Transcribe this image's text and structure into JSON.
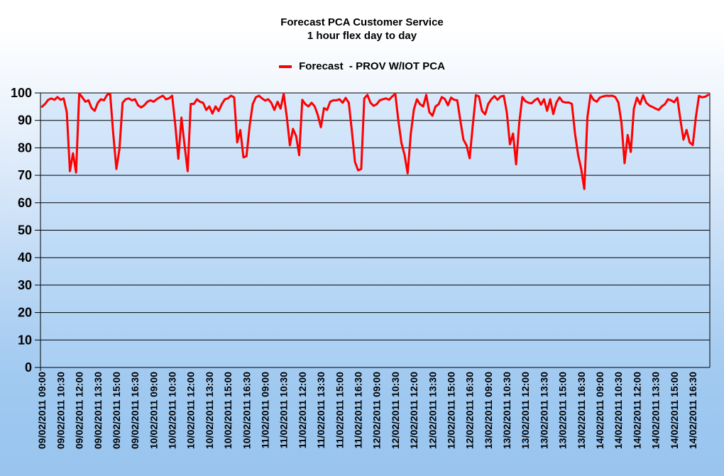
{
  "chart": {
    "title": "Forecast PCA Customer Service",
    "subtitle": "1 hour flex day to day",
    "legend_label": "Forecast  - PROV W/IOT PCA",
    "series_color": "#ff0000"
  },
  "colors": {
    "line": "#ff0000",
    "grid": "#000000",
    "text": "#000000",
    "page_top": "#ffffff",
    "page_bottom": "#99c4ee",
    "plot_top": "#d9e9fb",
    "plot_bottom": "#a9cff3"
  },
  "chart_data": {
    "type": "line",
    "title": "Forecast PCA Customer Service",
    "subtitle": "1 hour flex day to day",
    "legend": [
      {
        "label": "Forecast  - PROV W/IOT PCA",
        "color": "#ff0000"
      }
    ],
    "legend_position": "top-center",
    "grid": "horizontal-only",
    "ylim": [
      0,
      100
    ],
    "yticks": [
      0,
      10,
      20,
      30,
      40,
      50,
      60,
      70,
      80,
      90,
      100
    ],
    "points_per_tick": 6,
    "sample_interval_minutes": 15,
    "x_label_rotation": -90,
    "x_tick_labels": [
      "09/02/2011 09:00",
      "09/02/2011 10:30",
      "09/02/2011 12:00",
      "09/02/2011 13:30",
      "09/02/2011 15:00",
      "09/02/2011 16:30",
      "10/02/2011 09:00",
      "10/02/2011 10:30",
      "10/02/2011 12:00",
      "10/02/2011 13:30",
      "10/02/2011 15:00",
      "10/02/2011 16:30",
      "11/02/2011 09:00",
      "11/02/2011 10:30",
      "11/02/2011 12:00",
      "11/02/2011 13:30",
      "11/02/2011 15:00",
      "11/02/2011 16:30",
      "12/02/2011 09:00",
      "12/02/2011 10:30",
      "12/02/2011 12:00",
      "12/02/2011 13:30",
      "12/02/2011 15:00",
      "12/02/2011 16:30",
      "13/02/2011 09:00",
      "13/02/2011 10:30",
      "13/02/2011 12:00",
      "13/02/2011 13:30",
      "13/02/2011 15:00",
      "13/02/2011 16:30",
      "14/02/2011 09:00",
      "14/02/2011 10:30",
      "14/02/2011 12:00",
      "14/02/2011 13:30",
      "14/02/2011 15:00",
      "14/02/2011 16:30"
    ],
    "series": [
      {
        "name": "Forecast - PROV W/IOT PCA",
        "color": "#ff0000",
        "values": [
          95,
          96,
          97.5,
          98,
          97.5,
          98.5,
          97.5,
          98,
          93,
          71.5,
          78,
          71,
          99.8,
          98.4,
          96.8,
          97.3,
          94.5,
          93.5,
          96.4,
          97.7,
          97.3,
          99.3,
          99.7,
          85,
          72.3,
          79.6,
          96.4,
          97.7,
          98,
          97.3,
          97.7,
          95.5,
          94.7,
          95.5,
          96.8,
          97.3,
          96.8,
          97.7,
          98.4,
          99,
          97.7,
          98,
          99,
          88.5,
          76,
          91,
          81,
          71.5,
          96,
          96,
          97.7,
          96.8,
          96.4,
          93.8,
          95.1,
          92.5,
          95.1,
          93.4,
          95.9,
          97.7,
          98,
          99,
          98.4,
          82,
          86.5,
          76.5,
          77,
          88,
          96,
          98.4,
          99,
          98,
          97.2,
          97.7,
          96.4,
          93.8,
          96.8,
          94.3,
          99.7,
          91.2,
          80.9,
          86.9,
          84.3,
          77.3,
          97.5,
          95.9,
          95.1,
          96.4,
          95.1,
          92,
          87.5,
          94.5,
          93.8,
          96.8,
          97.3,
          97.3,
          97.7,
          96.4,
          98.2,
          96.4,
          86,
          74.9,
          71.8,
          72.3,
          98,
          99.3,
          96.4,
          95.3,
          95.9,
          97.3,
          97.7,
          98,
          97.5,
          98.7,
          99.7,
          90,
          81.7,
          77.4,
          70.7,
          85,
          94,
          97.7,
          95.9,
          95.1,
          99.3,
          93,
          91.7,
          95.1,
          95.9,
          98.5,
          97.8,
          95.5,
          98.3,
          97.5,
          97.3,
          89.9,
          83,
          80.9,
          76.2,
          88,
          99.2,
          98.7,
          93.5,
          92.2,
          96,
          97.7,
          98.8,
          97.5,
          98.7,
          99,
          93,
          81.3,
          85.2,
          74,
          89,
          98.5,
          97,
          96.4,
          96.2,
          97.3,
          98,
          95.7,
          97.7,
          93.5,
          97.7,
          92.3,
          96.5,
          98.4,
          96.8,
          96.5,
          96.5,
          96,
          85.2,
          77.4,
          72.3,
          65,
          91.2,
          99.3,
          97.5,
          96.8,
          98.3,
          98.7,
          99,
          98.9,
          99,
          98.5,
          96.5,
          89,
          74.4,
          84.7,
          78.5,
          94.2,
          98.3,
          95.9,
          99.2,
          96.4,
          95.4,
          94.9,
          94.3,
          93.8,
          95.1,
          95.9,
          97.7,
          97.3,
          96.6,
          98.3,
          90.4,
          83,
          86.5,
          82,
          81,
          91.2,
          98.9,
          98.4,
          98.6,
          99.3
        ]
      }
    ]
  }
}
